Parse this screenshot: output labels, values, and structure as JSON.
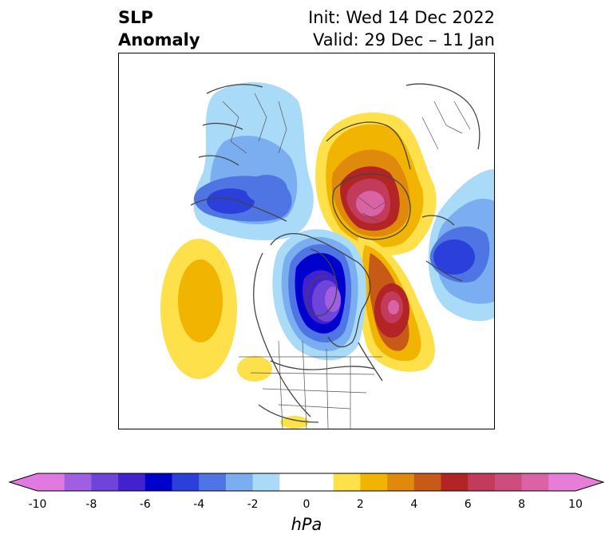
{
  "title": {
    "left_line1": "SLP",
    "left_line2": "Anomaly",
    "right_line1": "Init: Wed 14 Dec 2022",
    "right_line2": "Valid: 29 Dec – 11 Jan"
  },
  "colorbar": {
    "units": "hPa",
    "ticks": [
      "-10",
      "-8",
      "-6",
      "-4",
      "-2",
      "0",
      "2",
      "4",
      "6",
      "8",
      "10"
    ],
    "bounds": [
      -10,
      -9,
      -8,
      -7,
      -6,
      -5,
      -4,
      -3,
      -2,
      -1,
      1,
      2,
      3,
      4,
      5,
      6,
      7,
      8,
      9,
      10
    ],
    "colors": [
      "#e07ae0",
      "#9f5fe0",
      "#6f44d8",
      "#4321cf",
      "#0000cc",
      "#2b3fdb",
      "#4f74e3",
      "#7aaef0",
      "#a9daf8",
      "#ffffff",
      "#fde04a",
      "#f1b400",
      "#df8a0d",
      "#c75a16",
      "#b32424",
      "#c23b5b",
      "#cc4e7e",
      "#da63a6",
      "#e67dd6"
    ],
    "under_color": "#e07ae0",
    "over_color": "#e67dd6"
  },
  "map": {
    "projection": "north-polar-stereographic",
    "features": [
      {
        "name": "positive-anomaly-arctic",
        "peak_hPa": 10
      },
      {
        "name": "positive-anomaly-north-atlantic",
        "peak_hPa": 8
      },
      {
        "name": "positive-anomaly-east-pacific",
        "peak_hPa": 3
      },
      {
        "name": "negative-anomaly-canada",
        "peak_hPa": -10
      },
      {
        "name": "negative-anomaly-north-pacific",
        "peak_hPa": -5
      },
      {
        "name": "negative-anomaly-europe",
        "peak_hPa": -5
      }
    ]
  }
}
